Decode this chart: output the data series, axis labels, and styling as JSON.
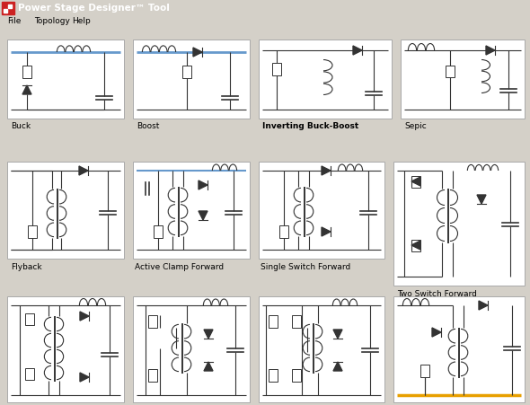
{
  "title_bar": "Power Stage Designer™ Tool",
  "title_bar_color": "#1B5CE8",
  "title_bar_text_color": "#FFFFFF",
  "menu_items": [
    "File",
    "Topology",
    "Help"
  ],
  "bg_color": "#D4D0C8",
  "panel_bg": "#FFFFFF",
  "panel_border": "#AAAAAA",
  "lc": "#333333",
  "hc": "#6699CC",
  "label_color": "#000000",
  "label_fontsize": 6.5,
  "menu_fontsize": 6.5,
  "title_fontsize": 7.5,
  "fig_w": 5.9,
  "fig_h": 4.51,
  "dpi": 100
}
